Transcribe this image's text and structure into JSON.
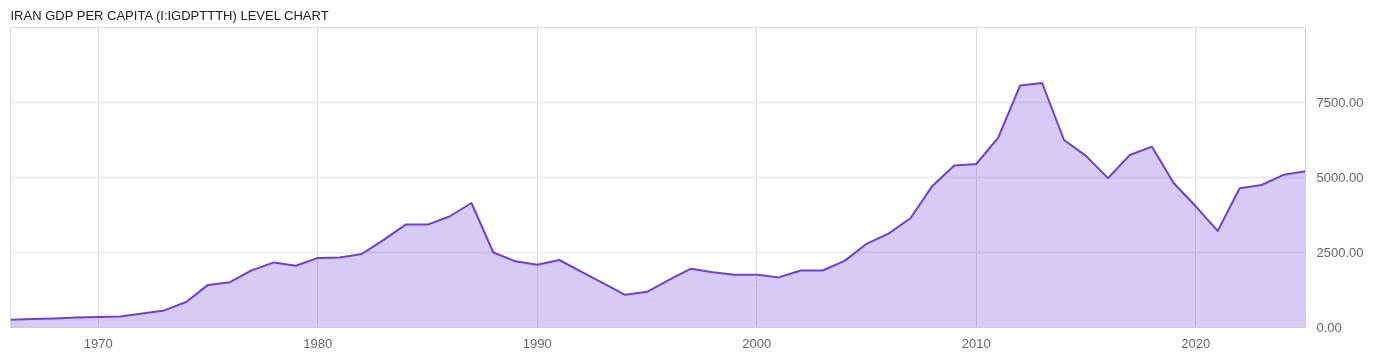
{
  "chart_data": {
    "type": "area",
    "title": "IRAN GDP PER CAPITA (I:IGDPTTTH) LEVEL CHART",
    "x": [
      1966,
      1967,
      1968,
      1969,
      1970,
      1971,
      1972,
      1973,
      1974,
      1975,
      1976,
      1977,
      1978,
      1979,
      1980,
      1981,
      1982,
      1983,
      1984,
      1985,
      1986,
      1987,
      1988,
      1989,
      1990,
      1991,
      1992,
      1993,
      1994,
      1995,
      1996,
      1997,
      1998,
      1999,
      2000,
      2001,
      2002,
      2003,
      2004,
      2005,
      2006,
      2007,
      2008,
      2009,
      2010,
      2011,
      2012,
      2013,
      2014,
      2015,
      2016,
      2017,
      2018,
      2019,
      2020,
      2021,
      2022,
      2023,
      2024,
      2025
    ],
    "series": [
      {
        "color": "#6f3fd6",
        "values": [
          260,
          280,
          300,
          330,
          350,
          370,
          470,
          570,
          850,
          1420,
          1510,
          1910,
          2170,
          2060,
          2320,
          2330,
          2450,
          2920,
          3430,
          3430,
          3700,
          4150,
          2500,
          2210,
          2090,
          2250,
          1860,
          1480,
          1090,
          1190,
          1590,
          1960,
          1840,
          1760,
          1760,
          1670,
          1900,
          1900,
          2220,
          2790,
          3130,
          3640,
          4720,
          5400,
          5450,
          6330,
          8070,
          8150,
          6250,
          5720,
          4980,
          5750,
          6030,
          4810,
          4040,
          3220,
          4640,
          4750,
          5090,
          5210
        ]
      }
    ],
    "xlim": [
      1966,
      2025
    ],
    "ylim": [
      0,
      10000
    ],
    "xticks": [
      1970,
      1980,
      1990,
      2000,
      2010,
      2020
    ],
    "yticks": [
      {
        "value": 0,
        "label": "0.00"
      },
      {
        "value": 2500,
        "label": "2500.00"
      },
      {
        "value": 5000,
        "label": "5000.00"
      },
      {
        "value": 7500,
        "label": "7500.00"
      }
    ],
    "grid": true,
    "marker": "none",
    "line_style": "solid"
  }
}
